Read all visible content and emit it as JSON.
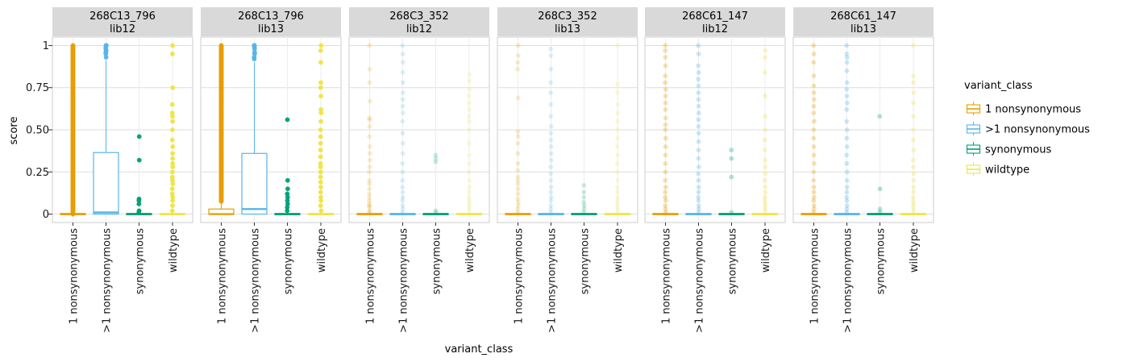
{
  "chart_data": {
    "type": "box",
    "xlabel": "variant_class",
    "ylabel": "score",
    "ylim": [
      -0.05,
      1.05
    ],
    "y_ticks": [
      0,
      0.25,
      0.5,
      0.75,
      1
    ],
    "y_tick_labels": [
      "0",
      "0.25",
      "0.50",
      "0.75",
      "1"
    ],
    "categories": [
      "1 nonsynonymous",
      ">1 nonsynonymous",
      "synonymous",
      "wildtype"
    ],
    "colors": {
      "1 nonsynonymous": "#E69F00",
      ">1 nonsynonymous": "#56B4E9",
      "synonymous": "#009E73",
      "wildtype": "#F0E442"
    },
    "legend": {
      "title": "variant_class",
      "position": "right",
      "items": [
        "1 nonsynonymous",
        ">1 nonsynonymous",
        "synonymous",
        "wildtype"
      ]
    },
    "grid": true,
    "facets": [
      {
        "strip": [
          "268C13_796",
          "lib12"
        ],
        "point_alpha": 0.95,
        "boxes": [
          {
            "q1": 0.0,
            "median": 0.0,
            "q3": 0.0,
            "whisker_high": 0.0,
            "outliers": {
              "range": [
                0.0,
                1.0
              ],
              "dense": true
            }
          },
          {
            "q1": 0.0,
            "median": 0.01,
            "q3": 0.365,
            "whisker_high": 0.91,
            "outliers": {
              "values": [
                0.93,
                0.95,
                0.96,
                0.97,
                0.98,
                0.99,
                1.0,
                1.0,
                1.0
              ]
            }
          },
          {
            "q1": 0.0,
            "median": 0.0,
            "q3": 0.0,
            "whisker_high": 0.0,
            "outliers": {
              "values": [
                0.01,
                0.02,
                0.06,
                0.08,
                0.09,
                0.32,
                0.46
              ]
            }
          },
          {
            "q1": 0.0,
            "median": 0.0,
            "q3": 0.0,
            "whisker_high": 0.0,
            "outliers": {
              "values": [
                0.02,
                0.05,
                0.08,
                0.1,
                0.12,
                0.15,
                0.18,
                0.2,
                0.22,
                0.25,
                0.28,
                0.3,
                0.33,
                0.36,
                0.4,
                0.44,
                0.5,
                0.55,
                0.58,
                0.6,
                0.65,
                0.75,
                0.95,
                1.0
              ]
            }
          }
        ]
      },
      {
        "strip": [
          "268C13_796",
          "lib13"
        ],
        "point_alpha": 0.95,
        "boxes": [
          {
            "q1": 0.0,
            "median": 0.0,
            "q3": 0.03,
            "whisker_high": 0.075,
            "outliers": {
              "range": [
                0.075,
                1.0
              ],
              "dense": true
            }
          },
          {
            "q1": 0.0,
            "median": 0.03,
            "q3": 0.36,
            "whisker_high": 0.9,
            "outliers": {
              "values": [
                0.92,
                0.93,
                0.95,
                0.96,
                0.98,
                0.99,
                1.0,
                1.0
              ]
            }
          },
          {
            "q1": 0.0,
            "median": 0.0,
            "q3": 0.0,
            "whisker_high": 0.0,
            "outliers": {
              "values": [
                0.02,
                0.04,
                0.06,
                0.08,
                0.1,
                0.12,
                0.15,
                0.2,
                0.56
              ]
            }
          },
          {
            "q1": 0.0,
            "median": 0.0,
            "q3": 0.0,
            "whisker_high": 0.0,
            "outliers": {
              "values": [
                0.02,
                0.05,
                0.08,
                0.1,
                0.13,
                0.16,
                0.19,
                0.22,
                0.25,
                0.28,
                0.3,
                0.34,
                0.38,
                0.42,
                0.46,
                0.5,
                0.55,
                0.6,
                0.62,
                0.7,
                0.75,
                0.78,
                0.9,
                0.97,
                1.0
              ]
            }
          }
        ]
      },
      {
        "strip": [
          "268C3_352",
          "lib12"
        ],
        "point_alpha": 0.2,
        "boxes": [
          {
            "q1": 0.0,
            "median": 0.0,
            "q3": 0.0,
            "whisker_high": 0.0,
            "outliers": {
              "values": [
                0.01,
                0.02,
                0.04,
                0.05,
                0.06,
                0.08,
                0.1,
                0.12,
                0.15,
                0.18,
                0.2,
                0.25,
                0.28,
                0.32,
                0.36,
                0.4,
                0.46,
                0.52,
                0.56,
                0.57,
                0.67,
                0.78,
                0.86,
                1.0
              ]
            }
          },
          {
            "q1": 0.0,
            "median": 0.0,
            "q3": 0.0,
            "whisker_high": 0.0,
            "outliers": {
              "values": [
                0.01,
                0.03,
                0.05,
                0.08,
                0.1,
                0.13,
                0.16,
                0.2,
                0.25,
                0.3,
                0.36,
                0.42,
                0.48,
                0.55,
                0.6,
                0.64,
                0.68,
                0.72,
                0.78,
                0.84,
                0.9,
                0.95,
                1.0
              ]
            }
          },
          {
            "q1": 0.0,
            "median": 0.0,
            "q3": 0.0,
            "whisker_high": 0.0,
            "outliers": {
              "values": [
                0.01,
                0.02,
                0.31,
                0.33,
                0.35
              ]
            }
          },
          {
            "q1": 0.0,
            "median": 0.0,
            "q3": 0.0,
            "whisker_high": 0.0,
            "outliers": {
              "values": [
                0.02,
                0.04,
                0.06,
                0.08,
                0.1,
                0.13,
                0.16,
                0.2,
                0.25,
                0.3,
                0.35,
                0.42,
                0.5,
                0.55,
                0.58,
                0.62,
                0.66,
                0.7,
                0.74,
                0.79,
                0.83
              ]
            }
          }
        ]
      },
      {
        "strip": [
          "268C3_352",
          "lib13"
        ],
        "point_alpha": 0.2,
        "boxes": [
          {
            "q1": 0.0,
            "median": 0.0,
            "q3": 0.0,
            "whisker_high": 0.0,
            "outliers": {
              "values": [
                0.01,
                0.03,
                0.05,
                0.07,
                0.09,
                0.12,
                0.15,
                0.18,
                0.2,
                0.22,
                0.26,
                0.3,
                0.36,
                0.42,
                0.46,
                0.49,
                0.69,
                0.86,
                0.9,
                0.94,
                1.0
              ]
            }
          },
          {
            "q1": 0.0,
            "median": 0.0,
            "q3": 0.0,
            "whisker_high": 0.0,
            "outliers": {
              "values": [
                0.01,
                0.03,
                0.05,
                0.08,
                0.1,
                0.13,
                0.16,
                0.2,
                0.24,
                0.28,
                0.32,
                0.36,
                0.4,
                0.44,
                0.48,
                0.52,
                0.58,
                0.65,
                0.72,
                0.78,
                0.86,
                0.94,
                0.98
              ]
            }
          },
          {
            "q1": 0.0,
            "median": 0.0,
            "q3": 0.0,
            "whisker_high": 0.0,
            "outliers": {
              "values": [
                0.01,
                0.03,
                0.05,
                0.07,
                0.1,
                0.13,
                0.17
              ]
            }
          },
          {
            "q1": 0.0,
            "median": 0.0,
            "q3": 0.0,
            "whisker_high": 0.0,
            "outliers": {
              "values": [
                0.02,
                0.04,
                0.06,
                0.08,
                0.1,
                0.13,
                0.16,
                0.2,
                0.25,
                0.3,
                0.35,
                0.4,
                0.45,
                0.5,
                0.55,
                0.6,
                0.65,
                0.72,
                0.77,
                1.0
              ]
            }
          }
        ]
      },
      {
        "strip": [
          "268C61_147",
          "lib12"
        ],
        "point_alpha": 0.3,
        "boxes": [
          {
            "q1": 0.0,
            "median": 0.0,
            "q3": 0.0,
            "whisker_high": 0.0,
            "outliers": {
              "values": [
                0.01,
                0.03,
                0.05,
                0.08,
                0.1,
                0.13,
                0.16,
                0.2,
                0.25,
                0.3,
                0.35,
                0.4,
                0.45,
                0.5,
                0.53,
                0.57,
                0.62,
                0.66,
                0.7,
                0.74,
                0.78,
                0.82,
                0.88,
                0.93,
                0.97,
                1.0
              ]
            }
          },
          {
            "q1": 0.0,
            "median": 0.0,
            "q3": 0.0,
            "whisker_high": 0.0,
            "outliers": {
              "values": [
                0.01,
                0.03,
                0.05,
                0.08,
                0.1,
                0.13,
                0.16,
                0.2,
                0.24,
                0.28,
                0.33,
                0.38,
                0.43,
                0.48,
                0.52,
                0.56,
                0.6,
                0.64,
                0.68,
                0.72,
                0.76,
                0.8,
                0.84,
                0.88,
                0.95,
                1.0
              ]
            }
          },
          {
            "q1": 0.0,
            "median": 0.0,
            "q3": 0.0,
            "whisker_high": 0.0,
            "outliers": {
              "values": [
                0.01,
                0.22,
                0.33,
                0.38
              ]
            }
          },
          {
            "q1": 0.0,
            "median": 0.0,
            "q3": 0.0,
            "whisker_high": 0.0,
            "outliers": {
              "values": [
                0.02,
                0.04,
                0.06,
                0.08,
                0.1,
                0.13,
                0.16,
                0.2,
                0.24,
                0.28,
                0.32,
                0.38,
                0.44,
                0.5,
                0.58,
                0.7,
                0.84,
                0.93,
                0.97
              ]
            }
          }
        ]
      },
      {
        "strip": [
          "268C61_147",
          "lib13"
        ],
        "point_alpha": 0.3,
        "boxes": [
          {
            "q1": 0.0,
            "median": 0.0,
            "q3": 0.0,
            "whisker_high": 0.0,
            "outliers": {
              "values": [
                0.01,
                0.03,
                0.05,
                0.08,
                0.1,
                0.13,
                0.16,
                0.2,
                0.25,
                0.3,
                0.35,
                0.4,
                0.45,
                0.5,
                0.55,
                0.6,
                0.64,
                0.68,
                0.72,
                0.76,
                0.82,
                0.9,
                0.95,
                1.0
              ]
            }
          },
          {
            "q1": 0.0,
            "median": 0.0,
            "q3": 0.0,
            "whisker_high": 0.0,
            "outliers": {
              "values": [
                0.01,
                0.03,
                0.05,
                0.08,
                0.1,
                0.13,
                0.16,
                0.2,
                0.25,
                0.3,
                0.35,
                0.4,
                0.45,
                0.5,
                0.55,
                0.62,
                0.66,
                0.7,
                0.74,
                0.78,
                0.85,
                0.9,
                0.93,
                0.95,
                1.0
              ]
            }
          },
          {
            "q1": 0.0,
            "median": 0.0,
            "q3": 0.0,
            "whisker_high": 0.0,
            "outliers": {
              "values": [
                0.01,
                0.03,
                0.15,
                0.58
              ]
            }
          },
          {
            "q1": 0.0,
            "median": 0.0,
            "q3": 0.0,
            "whisker_high": 0.0,
            "outliers": {
              "values": [
                0.02,
                0.04,
                0.06,
                0.08,
                0.1,
                0.13,
                0.16,
                0.2,
                0.24,
                0.28,
                0.32,
                0.38,
                0.44,
                0.5,
                0.58,
                0.66,
                0.72,
                0.78,
                0.82,
                1.0
              ]
            }
          }
        ]
      }
    ]
  }
}
